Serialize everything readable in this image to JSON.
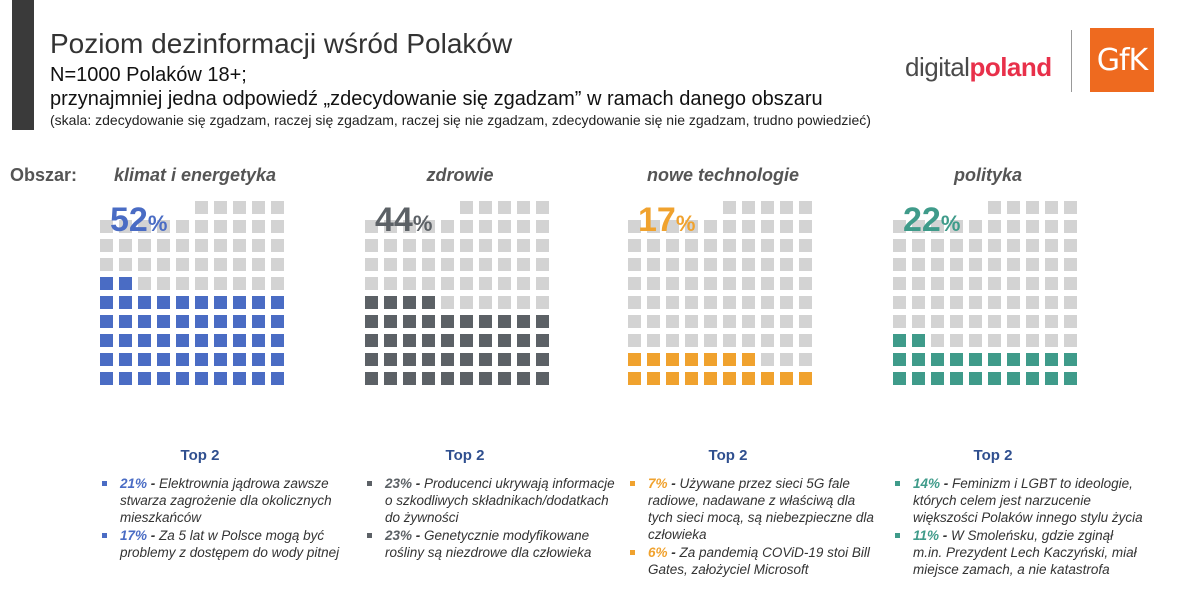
{
  "header": {
    "title": "Poziom dezinformacji wśród Polaków",
    "subtitle_line1": "N=1000 Polaków 18+;",
    "subtitle_line2": "przynajmniej jedna odpowiedź „zdecydowanie się zgadzam” w ramach danego obszaru",
    "scale_note": "(skala: zdecydowanie się zgadzam, raczej się zgadzam, raczej się nie zgadzam, zdecydowanie się nie zgadzam, trudno powiedzieć)"
  },
  "logos": {
    "digitalpoland_part1": "digital",
    "digitalpoland_part2": "poland",
    "gfk": "GfK"
  },
  "area_label": "Obszar:",
  "empty_color": "#d3d3d3",
  "chart_data": {
    "type": "waffle",
    "grid": "10x10",
    "categories": [
      "klimat i energetyka",
      "zdrowie",
      "nowe technologie",
      "polityka"
    ],
    "values": [
      52,
      44,
      17,
      22
    ],
    "unit": "%",
    "colors": [
      "#4a6cc4",
      "#5c6166",
      "#f0a22e",
      "#3f9b8a"
    ]
  },
  "panels": [
    {
      "title": "klimat i energetyka",
      "value": "52",
      "percent_sign": "%",
      "color": "#4a6cc4",
      "top2_label": "Top 2",
      "items": [
        {
          "value": "21%",
          "text": "Elektrownia jądrowa zawsze stwarza zagrożenie dla okolicznych mieszkańców"
        },
        {
          "value": "17%",
          "text": "Za 5 lat w Polsce mogą być problemy z dostępem do wody pitnej"
        }
      ]
    },
    {
      "title": "zdrowie",
      "value": "44",
      "percent_sign": "%",
      "color": "#5c6166",
      "top2_label": "Top 2",
      "items": [
        {
          "value": "23%",
          "text": "Producenci ukrywają informacje o szkodliwych składnikach/dodatkach do żywności"
        },
        {
          "value": "23%",
          "text": "Genetycznie modyfikowane rośliny są niezdrowe dla człowieka"
        }
      ]
    },
    {
      "title": "nowe technologie",
      "value": "17",
      "percent_sign": "%",
      "color": "#f0a22e",
      "top2_label": "Top 2",
      "items": [
        {
          "value": "7%",
          "text": "Używane przez sieci 5G fale radiowe, nadawane z właściwą dla tych sieci mocą, są niebezpieczne dla człowieka"
        },
        {
          "value": "6%",
          "text": "Za pandemią COViD-19 stoi Bill Gates, założyciel Microsoft"
        }
      ]
    },
    {
      "title": "polityka",
      "value": "22",
      "percent_sign": "%",
      "color": "#3f9b8a",
      "top2_label": "Top 2",
      "items": [
        {
          "value": "14%",
          "text": "Feminizm i LGBT to ideologie, których celem jest narzucenie większości Polaków innego stylu życia"
        },
        {
          "value": "11%",
          "text": "W Smoleńsku, gdzie zginął m.in. Prezydent Lech Kaczyński, miał miejsce zamach, a nie katastrofa"
        }
      ]
    }
  ]
}
